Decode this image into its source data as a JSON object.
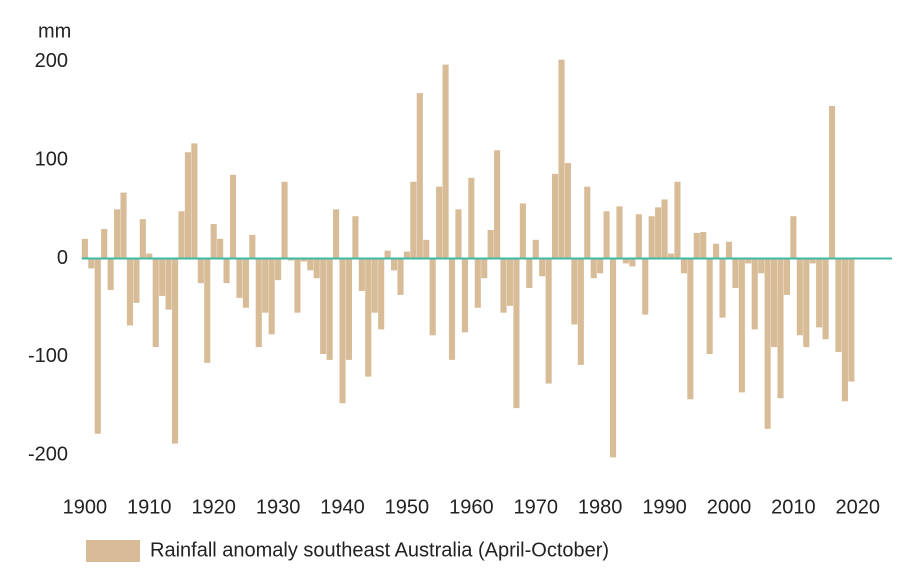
{
  "chart_data": {
    "type": "bar",
    "y_axis_label": "mm",
    "legend_label": "Rainfall anomaly southeast Australia (April-October)",
    "color": "#d8bc98",
    "zero_line_color": "#3fb8a3",
    "x": [
      1900,
      1901,
      1902,
      1903,
      1904,
      1905,
      1906,
      1907,
      1908,
      1909,
      1910,
      1911,
      1912,
      1913,
      1914,
      1915,
      1916,
      1917,
      1918,
      1919,
      1920,
      1921,
      1922,
      1923,
      1924,
      1925,
      1926,
      1927,
      1928,
      1929,
      1930,
      1931,
      1932,
      1933,
      1934,
      1935,
      1936,
      1937,
      1938,
      1939,
      1940,
      1941,
      1942,
      1943,
      1944,
      1945,
      1946,
      1947,
      1948,
      1949,
      1950,
      1951,
      1952,
      1953,
      1954,
      1955,
      1956,
      1957,
      1958,
      1959,
      1960,
      1961,
      1962,
      1963,
      1964,
      1965,
      1966,
      1967,
      1968,
      1969,
      1970,
      1971,
      1972,
      1973,
      1974,
      1975,
      1976,
      1977,
      1978,
      1979,
      1980,
      1981,
      1982,
      1983,
      1984,
      1985,
      1986,
      1987,
      1988,
      1989,
      1990,
      1991,
      1992,
      1993,
      1994,
      1995,
      1996,
      1997,
      1998,
      1999,
      2000,
      2001,
      2002,
      2003,
      2004,
      2005,
      2006,
      2007,
      2008,
      2009,
      2010,
      2011,
      2012,
      2013,
      2014,
      2015,
      2016,
      2017,
      2018,
      2019
    ],
    "values": [
      20,
      -10,
      -178,
      30,
      -32,
      50,
      67,
      -68,
      -45,
      40,
      5,
      -90,
      -38,
      -52,
      -188,
      48,
      108,
      117,
      -25,
      -106,
      35,
      20,
      -25,
      85,
      -40,
      -50,
      24,
      -90,
      -55,
      -77,
      -22,
      78,
      -2,
      -55,
      -3,
      -12,
      -20,
      -97,
      -103,
      50,
      -147,
      -103,
      43,
      -33,
      -120,
      -55,
      -72,
      8,
      -12,
      -37,
      7,
      78,
      168,
      19,
      -78,
      73,
      197,
      -103,
      50,
      -75,
      82,
      -50,
      -20,
      29,
      110,
      -55,
      -48,
      -152,
      56,
      -30,
      19,
      -18,
      -127,
      86,
      202,
      97,
      -67,
      -108,
      73,
      -20,
      -15,
      48,
      -202,
      53,
      -5,
      -8,
      45,
      -57,
      43,
      52,
      60,
      5,
      78,
      -15,
      -143,
      26,
      27,
      -97,
      15,
      -60,
      17,
      -30,
      -136,
      -5,
      -72,
      -15,
      -173,
      -90,
      -142,
      -37,
      43,
      -78,
      -90,
      -5,
      -70,
      -82,
      155,
      -95,
      -145,
      -125
    ],
    "xlim": [
      1898,
      2025
    ],
    "xticks": [
      1900,
      1910,
      1920,
      1930,
      1940,
      1950,
      1960,
      1970,
      1980,
      1990,
      2000,
      2010,
      2020
    ],
    "ylim": [
      -225,
      222
    ],
    "yticks": [
      200,
      100,
      0,
      -100,
      -200
    ]
  }
}
